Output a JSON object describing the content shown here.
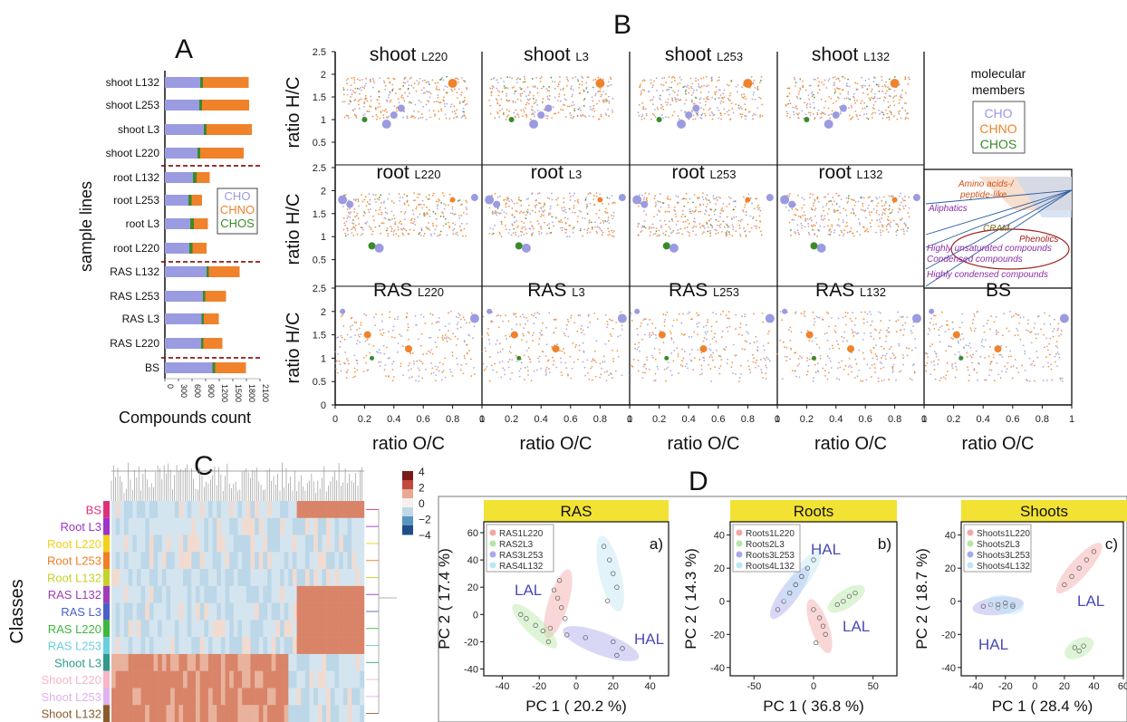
{
  "panels": {
    "A": "A",
    "B": "B",
    "C": "C",
    "D": "D"
  },
  "colors": {
    "CHO": "#9a9be0",
    "CHNO": "#f0822b",
    "CHOS": "#3a8a2a",
    "sep": "#8b1a1a"
  },
  "chart_data": [
    {
      "type": "bar",
      "panel": "A",
      "xlabel": "Compounds count",
      "ylabel": "sample lines",
      "xlim": [
        0,
        2100
      ],
      "xticks": [
        0,
        300,
        600,
        900,
        1200,
        1500,
        1800,
        2100
      ],
      "categories": [
        "shoot L132",
        "shoot L253",
        "shoot L3",
        "shoot L220",
        "root L132",
        "root L253",
        "root L3",
        "root L220",
        "RAS L132",
        "RAS L253",
        "RAS L3",
        "RAS L220",
        "BS"
      ],
      "series": [
        {
          "name": "CHO",
          "values": [
            780,
            760,
            860,
            720,
            620,
            520,
            560,
            540,
            920,
            840,
            810,
            800,
            1050
          ]
        },
        {
          "name": "CHOS",
          "values": [
            60,
            60,
            60,
            60,
            80,
            70,
            80,
            70,
            50,
            50,
            50,
            50,
            60
          ]
        },
        {
          "name": "CHNO",
          "values": [
            1010,
            1040,
            1000,
            960,
            290,
            230,
            310,
            310,
            680,
            460,
            330,
            420,
            680
          ]
        }
      ],
      "legend": [
        "CHO",
        "CHNO",
        "CHOS"
      ]
    },
    {
      "type": "scatter",
      "panel": "B",
      "xlabel": "ratio O/C",
      "ylabel": "ratio H/C",
      "xlim": [
        0,
        1
      ],
      "ylim": [
        0,
        2.5
      ],
      "xticks": [
        "0",
        "0.2",
        "0.4",
        "0.6",
        "0.8",
        "1"
      ],
      "yticks": [
        "0",
        "0.5",
        "1",
        "1.5",
        "2",
        "2.5"
      ],
      "rows": [
        {
          "group": "shoot",
          "panels": [
            "L220",
            "L3",
            "L253",
            "L132"
          ]
        },
        {
          "group": "root",
          "panels": [
            "L220",
            "L3",
            "L253",
            "L132"
          ]
        },
        {
          "group": "RAS",
          "panels": [
            "L220",
            "L3",
            "L253",
            "L132"
          ]
        }
      ],
      "extra_panel": "BS",
      "legend_title": "molecular members",
      "legend": [
        "CHO",
        "CHNO",
        "CHOS"
      ],
      "regions": [
        "Amino acids-/",
        "peptide-like",
        "Aliphatics",
        "CRAM",
        "Phenolics",
        "Highly unsaturated compounds",
        "Condensed compounds",
        "Highly condensed compounds"
      ]
    },
    {
      "type": "heatmap",
      "panel": "C",
      "ylabel": "Classes",
      "classes": [
        {
          "name": "BS",
          "color": "#e0307a"
        },
        {
          "name": "Root L3",
          "color": "#9b35c7"
        },
        {
          "name": "Root L220",
          "color": "#f2d21a"
        },
        {
          "name": "Root L253",
          "color": "#f07f2a"
        },
        {
          "name": "Root L132",
          "color": "#c4d32a"
        },
        {
          "name": "RAS L132",
          "color": "#a13ab5"
        },
        {
          "name": "RAS L3",
          "color": "#4a60c8"
        },
        {
          "name": "RAS L220",
          "color": "#3db83d"
        },
        {
          "name": "RAS L253",
          "color": "#68cfe0"
        },
        {
          "name": "Shoot L3",
          "color": "#2f9a8b"
        },
        {
          "name": "Shoot L220",
          "color": "#f7b7c7"
        },
        {
          "name": "Shoot L253",
          "color": "#e1b1ef"
        },
        {
          "name": "Shoot L132",
          "color": "#8a5a2a"
        }
      ],
      "scale": {
        "ticks": [
          "4",
          "2",
          "0",
          "−2",
          "−4"
        ],
        "range": [
          -4,
          4
        ]
      }
    },
    {
      "type": "scatter",
      "panel": "D",
      "plots": [
        {
          "title": "RAS",
          "tag": "a)",
          "xlabel": "PC 1 ( 20.2 %)",
          "ylabel": "PC 2 ( 17.4 %)",
          "xlim": [
            -50,
            50
          ],
          "ylim": [
            -45,
            68
          ],
          "xticks": [
            -40,
            -20,
            0,
            20,
            40
          ],
          "yticks": [
            -40,
            -20,
            0,
            20,
            40,
            60
          ],
          "legend": [
            "RAS1L220",
            "RAS2L3",
            "RAS3L253",
            "RAS4L132"
          ],
          "labels": [
            "LAL",
            "HAL"
          ],
          "series": [
            {
              "name": "RAS1L220",
              "color": "#f4a6a6",
              "x": [
                -12,
                -10,
                -8,
                -6,
                -14,
                -9
              ],
              "y": [
                18,
                12,
                5,
                -3,
                -10,
                25
              ]
            },
            {
              "name": "RAS2L3",
              "color": "#b5e6a3",
              "x": [
                -30,
                -27,
                -22,
                -18,
                -15
              ],
              "y": [
                0,
                -3,
                -8,
                -12,
                -20
              ]
            },
            {
              "name": "RAS3L253",
              "color": "#a9a9ea",
              "x": [
                -5,
                5,
                20,
                25,
                22
              ],
              "y": [
                -15,
                -17,
                -20,
                -25,
                -30
              ]
            },
            {
              "name": "RAS4L132",
              "color": "#bfe6f4",
              "x": [
                15,
                18,
                20,
                22,
                17
              ],
              "y": [
                50,
                40,
                30,
                20,
                10
              ]
            }
          ]
        },
        {
          "title": "Roots",
          "tag": "b)",
          "xlabel": "PC 1 ( 36.8 %)",
          "ylabel": "PC 2 ( 14.3 %)",
          "xlim": [
            -70,
            70
          ],
          "ylim": [
            -45,
            48
          ],
          "xticks": [
            -50,
            0,
            50
          ],
          "yticks": [
            -40,
            -20,
            0,
            20,
            40
          ],
          "legend": [
            "Roots1L220",
            "Roots2L3",
            "Roots3L253",
            "Roots4L132"
          ],
          "labels": [
            "HAL",
            "LAL"
          ],
          "series": [
            {
              "name": "Roots1L220",
              "color": "#f4a6a6",
              "x": [
                0,
                5,
                8,
                10,
                2
              ],
              "y": [
                -5,
                -10,
                -15,
                -20,
                -25
              ]
            },
            {
              "name": "Roots2L3",
              "color": "#b5e6a3",
              "x": [
                20,
                25,
                30,
                35
              ],
              "y": [
                -2,
                0,
                3,
                5
              ]
            },
            {
              "name": "Roots3L253",
              "color": "#a9a9ea",
              "x": [
                -30,
                -25,
                -20,
                -15,
                -10
              ],
              "y": [
                -5,
                0,
                5,
                10,
                15
              ]
            },
            {
              "name": "Roots4L132",
              "color": "#bfe6f4",
              "x": [
                -20,
                -15,
                -10,
                -5,
                0
              ],
              "y": [
                5,
                10,
                15,
                20,
                25
              ]
            }
          ]
        },
        {
          "title": "Shoots",
          "tag": "c)",
          "xlabel": "PC 1 ( 28.4 %)",
          "ylabel": "PC 2 ( 18.7 %)",
          "xlim": [
            -50,
            60
          ],
          "ylim": [
            -45,
            48
          ],
          "xticks": [
            -40,
            -20,
            0,
            20,
            40,
            60
          ],
          "yticks": [
            -40,
            -20,
            0,
            20,
            40
          ],
          "legend": [
            "Shoots1L220",
            "Shoots2L3",
            "Shoots3L253",
            "Shoots4L132"
          ],
          "labels": [
            "LAL",
            "HAL"
          ],
          "series": [
            {
              "name": "Shoots1L220",
              "color": "#f4a6a6",
              "x": [
                20,
                25,
                30,
                35,
                40
              ],
              "y": [
                10,
                15,
                20,
                25,
                30
              ]
            },
            {
              "name": "Shoots2L3",
              "color": "#b5e6a3",
              "x": [
                27,
                30,
                33
              ],
              "y": [
                -28,
                -30,
                -27
              ]
            },
            {
              "name": "Shoots3L253",
              "color": "#a9a9ea",
              "x": [
                -35,
                -30,
                -25,
                -20,
                -15
              ],
              "y": [
                -3,
                -2,
                -4,
                -3,
                -2
              ]
            },
            {
              "name": "Shoots4L132",
              "color": "#bfe6f4",
              "x": [
                -25,
                -20,
                -15
              ],
              "y": [
                -2,
                -1,
                -3
              ]
            }
          ]
        }
      ]
    }
  ]
}
